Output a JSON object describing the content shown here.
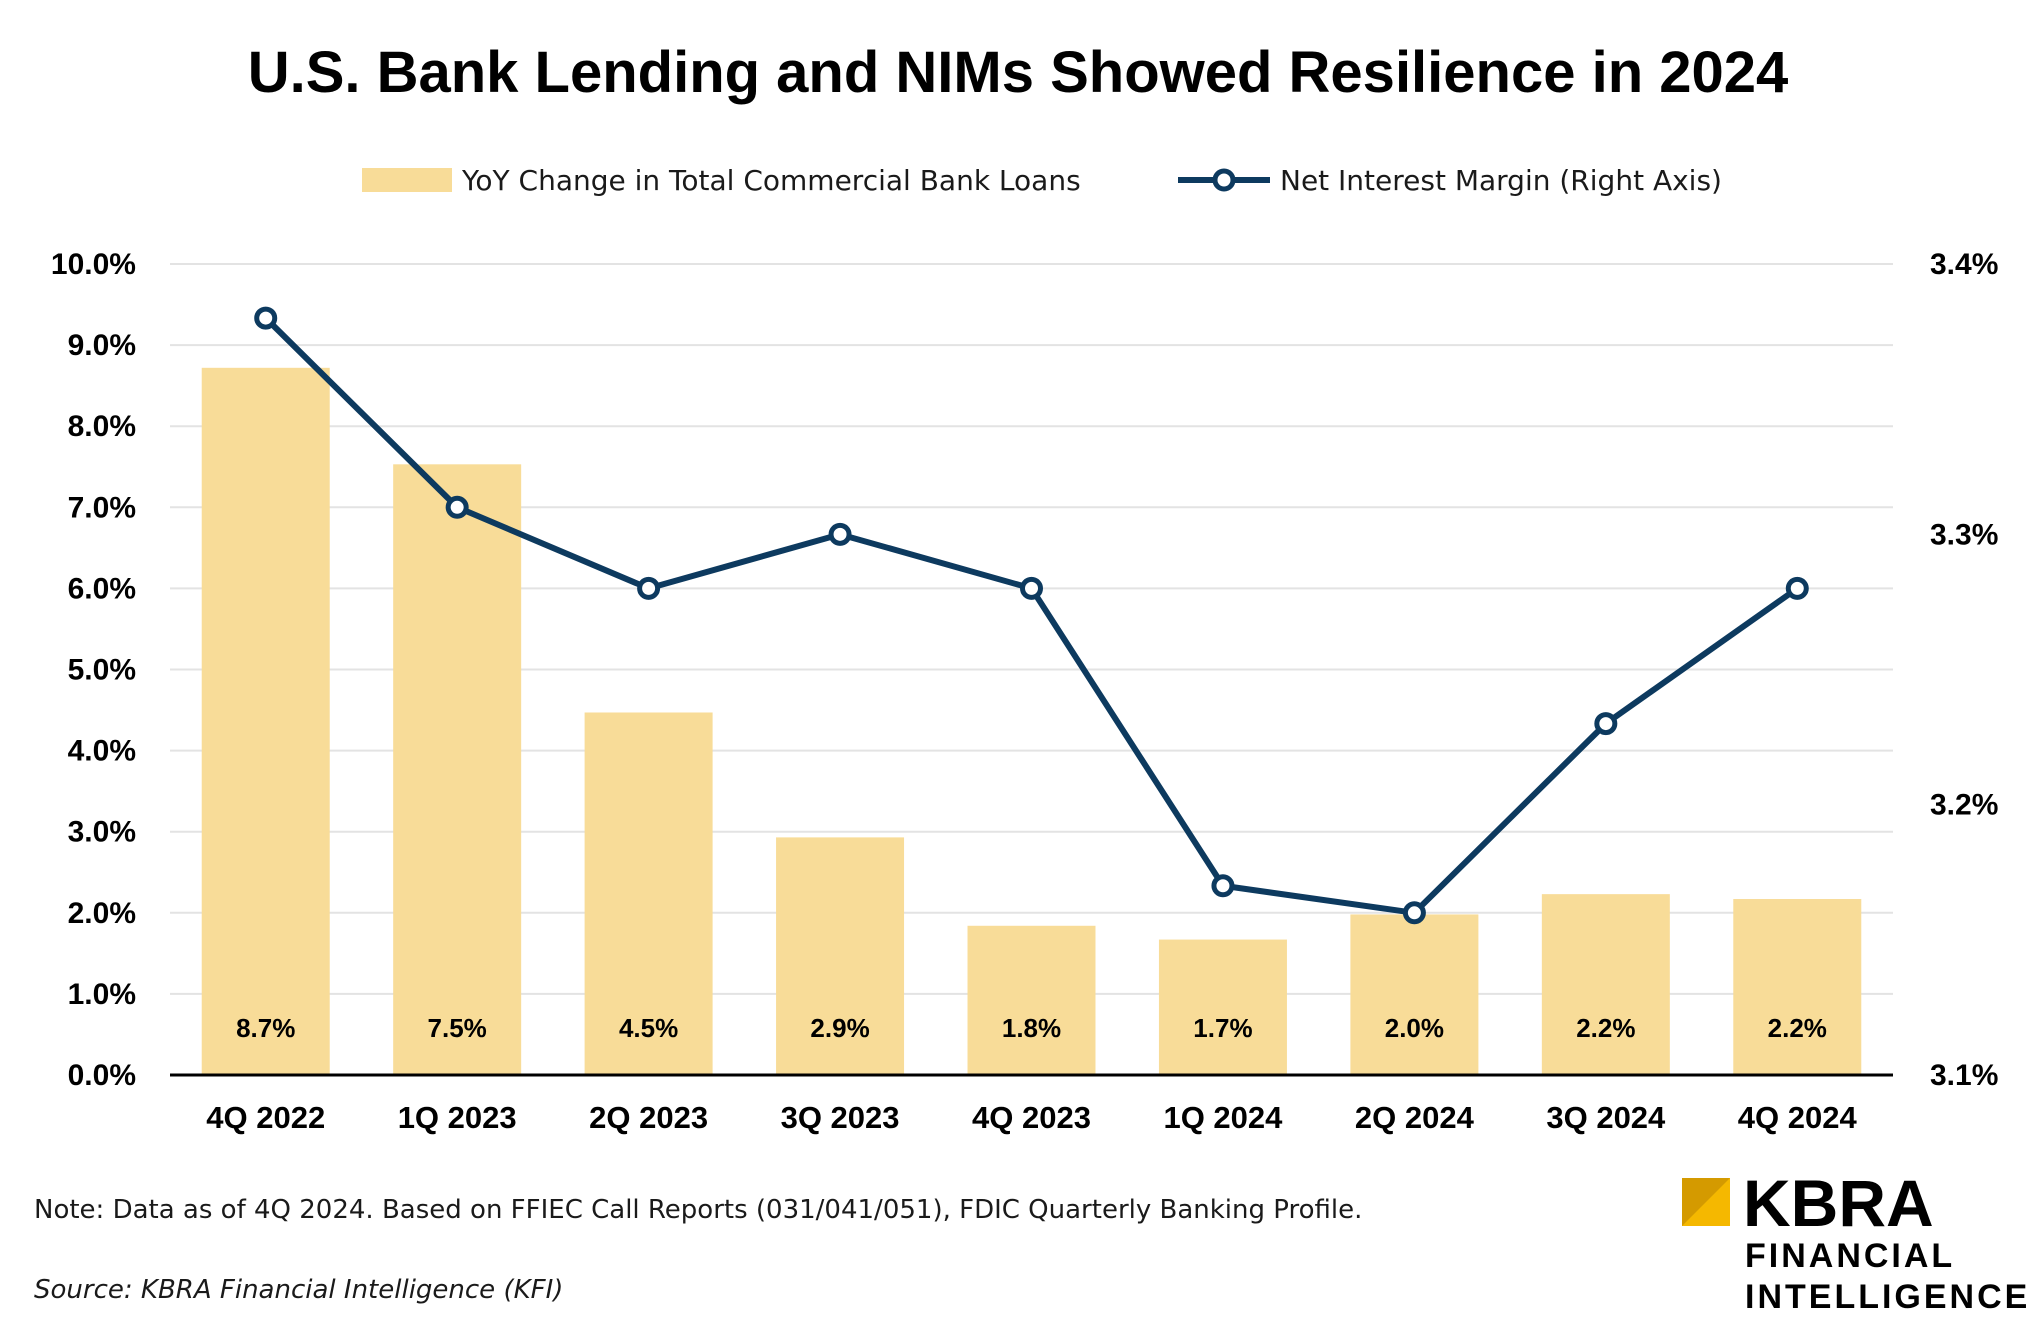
{
  "chart_data": {
    "type": "bar+line",
    "title": "U.S. Bank Lending and NIMs Showed Resilience in 2024",
    "categories": [
      "4Q 2022",
      "1Q 2023",
      "2Q 2023",
      "3Q 2023",
      "4Q 2023",
      "1Q 2024",
      "2Q 2024",
      "3Q 2024",
      "4Q 2024"
    ],
    "series": [
      {
        "name": "YoY Change in Total Commercial Bank Loans",
        "type": "bar",
        "axis": "left",
        "color": "#F8DC98",
        "values": [
          8.7,
          7.5,
          4.5,
          2.9,
          1.8,
          1.7,
          2.0,
          2.2,
          2.2
        ],
        "bar_heights": [
          8.72,
          7.53,
          4.47,
          2.93,
          1.84,
          1.67,
          1.98,
          2.23,
          2.17
        ],
        "labels": [
          "8.7%",
          "7.5%",
          "4.5%",
          "2.9%",
          "1.8%",
          "1.7%",
          "2.0%",
          "2.2%",
          "2.2%"
        ]
      },
      {
        "name": "Net Interest Margin (Right Axis)",
        "type": "line",
        "axis": "right",
        "color": "#0D3A5F",
        "values": [
          3.38,
          3.31,
          3.28,
          3.3,
          3.28,
          3.17,
          3.16,
          3.23,
          3.28
        ]
      }
    ],
    "left_axis": {
      "ylim": [
        0,
        10
      ],
      "ticks": [
        0,
        1,
        2,
        3,
        4,
        5,
        6,
        7,
        8,
        9,
        10
      ],
      "tick_labels": [
        "0.0%",
        "1.0%",
        "2.0%",
        "3.0%",
        "4.0%",
        "5.0%",
        "6.0%",
        "7.0%",
        "8.0%",
        "9.0%",
        "10.0%"
      ]
    },
    "right_axis": {
      "ylim": [
        3.1,
        3.4
      ],
      "ticks": [
        3.1,
        3.2,
        3.3,
        3.4
      ],
      "tick_labels": [
        "3.1%",
        "3.2%",
        "3.3%",
        "3.4%"
      ]
    },
    "grid": true,
    "legend_position": "top-center",
    "note": "Note: Data as of 4Q 2024. Based on FFIEC Call Reports (031/041/051), FDIC Quarterly Banking Profile.",
    "source": "Source: KBRA Financial Intelligence (KFI)"
  },
  "logo": {
    "main": "KBRA",
    "line1": "FINANCIAL",
    "line2": "INTELLIGENCE",
    "accent_color": "#F5B800"
  }
}
